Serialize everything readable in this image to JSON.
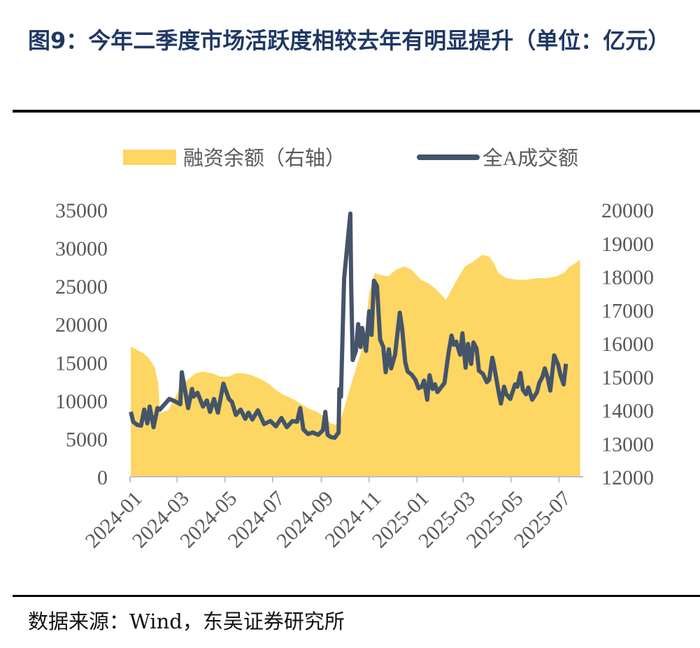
{
  "header": {
    "title": "图9：今年二季度市场活跃度相较去年有明显提升（单位：亿元）"
  },
  "footer": {
    "source": "数据来源：Wind，东吴证券研究所"
  },
  "colors": {
    "title": "#1f3864",
    "area": "#fdd663",
    "line": "#44546a",
    "text": "#595959"
  },
  "chart_data": {
    "type": "line",
    "legend": {
      "position": "top",
      "entries": [
        "融资余额（右轴）",
        "全A成交额"
      ]
    },
    "x": [
      "2024-01",
      "2024-03",
      "2024-05",
      "2024-07",
      "2024-09",
      "2024-11",
      "2025-01",
      "2025-03",
      "2025-05",
      "2025-07"
    ],
    "left_axis": {
      "ticks": [
        0,
        5000,
        10000,
        15000,
        20000,
        25000,
        30000,
        35000
      ],
      "range": [
        0,
        35000
      ]
    },
    "right_axis": {
      "ticks": [
        12000,
        13000,
        14000,
        15000,
        16000,
        17000,
        18000,
        19000,
        20000
      ],
      "range": [
        12000,
        20000
      ]
    },
    "series": [
      {
        "name": "融资余额（右轴）",
        "kind": "area",
        "axis": "right",
        "points": [
          [
            "2024-01-02",
            15900
          ],
          [
            "2024-01-10",
            15800
          ],
          [
            "2024-01-18",
            15700
          ],
          [
            "2024-01-25",
            15550
          ],
          [
            "2024-02-01",
            15300
          ],
          [
            "2024-02-06",
            14800
          ],
          [
            "2024-02-08",
            13900
          ],
          [
            "2024-02-19",
            14000
          ],
          [
            "2024-02-26",
            14300
          ],
          [
            "2024-03-05",
            14700
          ],
          [
            "2024-03-14",
            14900
          ],
          [
            "2024-03-25",
            15100
          ],
          [
            "2024-04-03",
            15150
          ],
          [
            "2024-04-15",
            15100
          ],
          [
            "2024-04-25",
            15000
          ],
          [
            "2024-05-06",
            15000
          ],
          [
            "2024-05-15",
            15100
          ],
          [
            "2024-05-24",
            15100
          ],
          [
            "2024-06-03",
            15050
          ],
          [
            "2024-06-14",
            14950
          ],
          [
            "2024-06-25",
            14800
          ],
          [
            "2024-07-05",
            14600
          ],
          [
            "2024-07-15",
            14450
          ],
          [
            "2024-07-25",
            14350
          ],
          [
            "2024-08-05",
            14200
          ],
          [
            "2024-08-15",
            14050
          ],
          [
            "2024-08-26",
            13950
          ],
          [
            "2024-09-05",
            13800
          ],
          [
            "2024-09-13",
            13600
          ],
          [
            "2024-09-20",
            13550
          ],
          [
            "2024-09-27",
            13800
          ],
          [
            "2024-10-08",
            14700
          ],
          [
            "2024-10-16",
            15300
          ],
          [
            "2024-10-25",
            16000
          ],
          [
            "2024-11-01",
            17500
          ],
          [
            "2024-11-08",
            18100
          ],
          [
            "2024-11-15",
            18050
          ],
          [
            "2024-11-25",
            18000
          ],
          [
            "2024-12-05",
            18200
          ],
          [
            "2024-12-16",
            18300
          ],
          [
            "2024-12-25",
            18200
          ],
          [
            "2025-01-06",
            17900
          ],
          [
            "2025-01-15",
            17800
          ],
          [
            "2025-01-24",
            17650
          ],
          [
            "2025-02-07",
            17300
          ],
          [
            "2025-02-14",
            17600
          ],
          [
            "2025-02-21",
            17900
          ],
          [
            "2025-03-03",
            18300
          ],
          [
            "2025-03-14",
            18450
          ],
          [
            "2025-03-25",
            18650
          ],
          [
            "2025-04-03",
            18600
          ],
          [
            "2025-04-09",
            18400
          ],
          [
            "2025-04-15",
            18100
          ],
          [
            "2025-04-25",
            17950
          ],
          [
            "2025-05-09",
            17900
          ],
          [
            "2025-05-20",
            17900
          ],
          [
            "2025-06-03",
            17950
          ],
          [
            "2025-06-16",
            17950
          ],
          [
            "2025-06-27",
            18000
          ],
          [
            "2025-07-07",
            18100
          ],
          [
            "2025-07-15",
            18300
          ],
          [
            "2025-07-22",
            18400
          ],
          [
            "2025-07-28",
            18500
          ]
        ]
      },
      {
        "name": "全A成交额",
        "kind": "line",
        "axis": "left",
        "points": [
          [
            "2024-01-02",
            8500
          ],
          [
            "2024-01-05",
            7200
          ],
          [
            "2024-01-10",
            6800
          ],
          [
            "2024-01-15",
            6700
          ],
          [
            "2024-01-19",
            8800
          ],
          [
            "2024-01-23",
            7000
          ],
          [
            "2024-01-26",
            9200
          ],
          [
            "2024-01-31",
            6500
          ],
          [
            "2024-02-05",
            9000
          ],
          [
            "2024-02-08",
            8800
          ],
          [
            "2024-02-20",
            10200
          ],
          [
            "2024-02-27",
            9900
          ],
          [
            "2024-03-05",
            9500
          ],
          [
            "2024-03-07",
            13700
          ],
          [
            "2024-03-12",
            10800
          ],
          [
            "2024-03-15",
            9000
          ],
          [
            "2024-03-20",
            11500
          ],
          [
            "2024-03-22",
            10500
          ],
          [
            "2024-03-27",
            11000
          ],
          [
            "2024-04-03",
            9200
          ],
          [
            "2024-04-08",
            10000
          ],
          [
            "2024-04-12",
            8500
          ],
          [
            "2024-04-17",
            10200
          ],
          [
            "2024-04-22",
            8400
          ],
          [
            "2024-04-29",
            12200
          ],
          [
            "2024-05-06",
            10200
          ],
          [
            "2024-05-10",
            9800
          ],
          [
            "2024-05-15",
            8100
          ],
          [
            "2024-05-21",
            8800
          ],
          [
            "2024-05-27",
            7600
          ],
          [
            "2024-05-31",
            8400
          ],
          [
            "2024-06-05",
            7500
          ],
          [
            "2024-06-12",
            8700
          ],
          [
            "2024-06-20",
            6900
          ],
          [
            "2024-06-28",
            7300
          ],
          [
            "2024-07-05",
            6600
          ],
          [
            "2024-07-12",
            7700
          ],
          [
            "2024-07-19",
            6500
          ],
          [
            "2024-07-26",
            7300
          ],
          [
            "2024-08-01",
            7200
          ],
          [
            "2024-08-05",
            9000
          ],
          [
            "2024-08-09",
            6200
          ],
          [
            "2024-08-15",
            5600
          ],
          [
            "2024-08-21",
            5800
          ],
          [
            "2024-08-28",
            5500
          ],
          [
            "2024-09-03",
            6100
          ],
          [
            "2024-09-06",
            8500
          ],
          [
            "2024-09-09",
            5500
          ],
          [
            "2024-09-13",
            5200
          ],
          [
            "2024-09-18",
            5100
          ],
          [
            "2024-09-23",
            5800
          ],
          [
            "2024-09-24",
            11500
          ],
          [
            "2024-09-26",
            10500
          ],
          [
            "2024-09-27",
            14500
          ],
          [
            "2024-09-30",
            26000
          ],
          [
            "2024-10-08",
            34500
          ],
          [
            "2024-10-09",
            25000
          ],
          [
            "2024-10-11",
            15300
          ],
          [
            "2024-10-15",
            16500
          ],
          [
            "2024-10-18",
            20000
          ],
          [
            "2024-10-21",
            17000
          ],
          [
            "2024-10-23",
            19500
          ],
          [
            "2024-10-28",
            16500
          ],
          [
            "2024-11-01",
            21700
          ],
          [
            "2024-11-04",
            18600
          ],
          [
            "2024-11-07",
            25700
          ],
          [
            "2024-11-11",
            25000
          ],
          [
            "2024-11-15",
            18000
          ],
          [
            "2024-11-19",
            17000
          ],
          [
            "2024-11-22",
            13700
          ],
          [
            "2024-11-26",
            16700
          ],
          [
            "2024-11-29",
            14200
          ],
          [
            "2024-12-04",
            16000
          ],
          [
            "2024-12-10",
            21500
          ],
          [
            "2024-12-13",
            19500
          ],
          [
            "2024-12-17",
            15000
          ],
          [
            "2024-12-20",
            13800
          ],
          [
            "2024-12-25",
            13400
          ],
          [
            "2024-12-30",
            12700
          ],
          [
            "2025-01-03",
            11600
          ],
          [
            "2025-01-07",
            11800
          ],
          [
            "2025-01-10",
            12600
          ],
          [
            "2025-01-14",
            10100
          ],
          [
            "2025-01-17",
            13300
          ],
          [
            "2025-01-21",
            11500
          ],
          [
            "2025-01-24",
            12100
          ],
          [
            "2025-01-27",
            11100
          ],
          [
            "2025-02-05",
            12300
          ],
          [
            "2025-02-10",
            16100
          ],
          [
            "2025-02-14",
            18500
          ],
          [
            "2025-02-17",
            17300
          ],
          [
            "2025-02-20",
            17700
          ],
          [
            "2025-02-25",
            16000
          ],
          [
            "2025-02-28",
            18800
          ],
          [
            "2025-03-04",
            14300
          ],
          [
            "2025-03-07",
            17400
          ],
          [
            "2025-03-11",
            14800
          ],
          [
            "2025-03-14",
            17600
          ],
          [
            "2025-03-18",
            16800
          ],
          [
            "2025-03-21",
            13900
          ],
          [
            "2025-03-26",
            13500
          ],
          [
            "2025-03-31",
            12400
          ],
          [
            "2025-04-03",
            12700
          ],
          [
            "2025-04-07",
            15600
          ],
          [
            "2025-04-09",
            14700
          ],
          [
            "2025-04-15",
            11200
          ],
          [
            "2025-04-18",
            9600
          ],
          [
            "2025-04-22",
            11800
          ],
          [
            "2025-04-25",
            10800
          ],
          [
            "2025-04-30",
            10200
          ],
          [
            "2025-05-06",
            12100
          ],
          [
            "2025-05-09",
            11800
          ],
          [
            "2025-05-13",
            13600
          ],
          [
            "2025-05-16",
            11400
          ],
          [
            "2025-05-20",
            10800
          ],
          [
            "2025-05-23",
            11700
          ],
          [
            "2025-05-28",
            10100
          ],
          [
            "2025-06-03",
            11100
          ],
          [
            "2025-06-06",
            12300
          ],
          [
            "2025-06-10",
            13100
          ],
          [
            "2025-06-13",
            14200
          ],
          [
            "2025-06-17",
            12800
          ],
          [
            "2025-06-20",
            11300
          ],
          [
            "2025-06-25",
            15900
          ],
          [
            "2025-06-30",
            14700
          ],
          [
            "2025-07-03",
            13300
          ],
          [
            "2025-07-07",
            12100
          ],
          [
            "2025-07-10",
            14800
          ]
        ]
      }
    ]
  }
}
